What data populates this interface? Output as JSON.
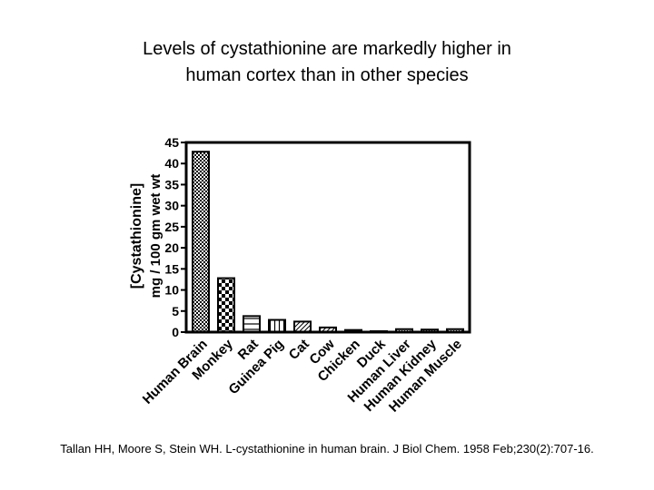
{
  "slide": {
    "title_line1": "Levels of cystathionine are markedly higher in",
    "title_line2": "human cortex than in other species",
    "citation": "Tallan HH, Moore S, Stein WH. L-cystathionine in human brain. J Biol Chem. 1958 Feb;230(2):707-16."
  },
  "chart_data": {
    "type": "bar",
    "title": "",
    "ylabel_line1": "[Cystathionine]",
    "ylabel_line2": "mg / 100 gm wet wt",
    "xlabel": "",
    "ylim": [
      0,
      45
    ],
    "yticks": [
      0,
      5,
      10,
      15,
      20,
      25,
      30,
      35,
      40,
      45
    ],
    "grid": false,
    "categories": [
      "Human Brain",
      "Monkey",
      "Rat",
      "Guinea Pig",
      "Cat",
      "Cow",
      "Chicken",
      "Duck",
      "Human Liver",
      "Human Kidney",
      "Human Muscle"
    ],
    "values": [
      42.8,
      12.8,
      3.8,
      2.9,
      2.5,
      1.1,
      0.5,
      0.2,
      0.7,
      0.6,
      0.7
    ],
    "patterns": [
      "dense-dots",
      "checker",
      "horizontal",
      "vertical",
      "diagonal",
      "diagonal",
      "diagonal",
      "diagonal",
      "dots",
      "dots",
      "dots"
    ]
  }
}
